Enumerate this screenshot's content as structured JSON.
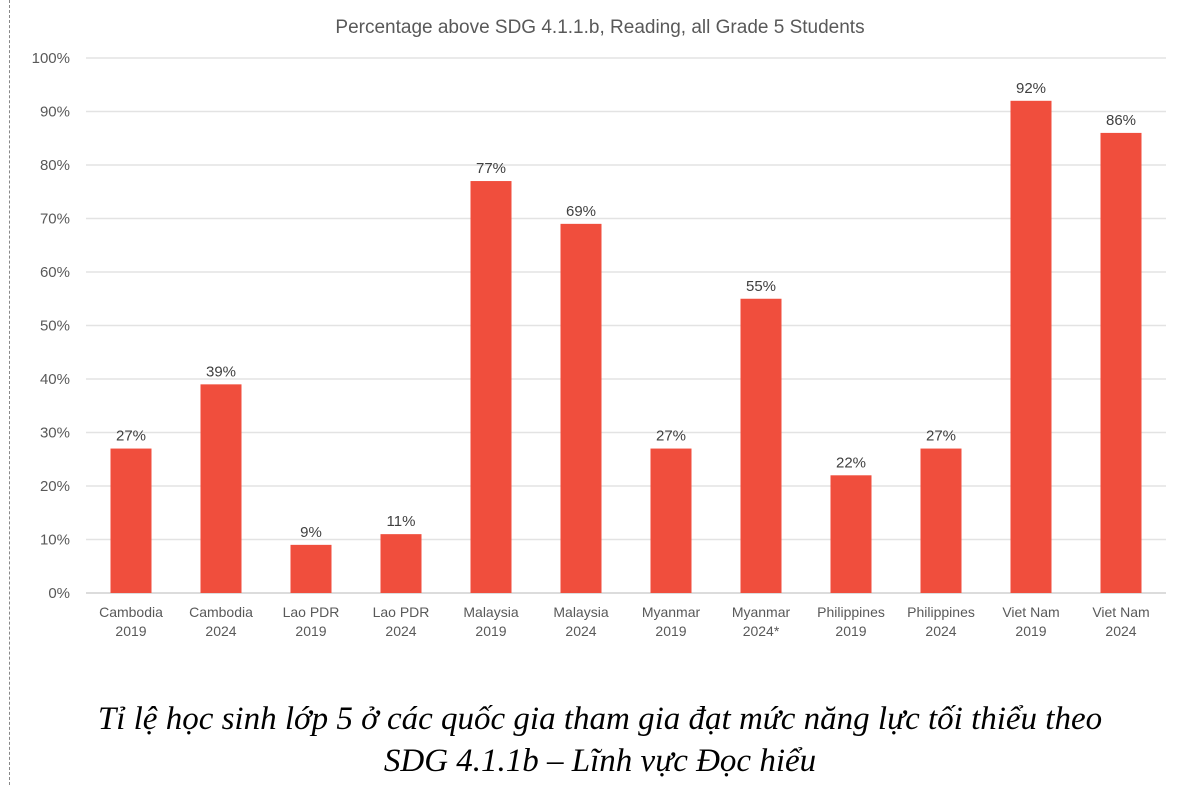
{
  "chart_data": {
    "type": "bar",
    "title": "Percentage above SDG 4.1.1.b, Reading, all Grade 5 Students",
    "categories": [
      [
        "Cambodia",
        "2019"
      ],
      [
        "Cambodia",
        "2024"
      ],
      [
        "Lao PDR",
        "2019"
      ],
      [
        "Lao PDR",
        "2024"
      ],
      [
        "Malaysia",
        "2019"
      ],
      [
        "Malaysia",
        "2024"
      ],
      [
        "Myanmar",
        "2019"
      ],
      [
        "Myanmar",
        "2024*"
      ],
      [
        "Philippines",
        "2019"
      ],
      [
        "Philippines",
        "2024"
      ],
      [
        "Viet Nam",
        "2019"
      ],
      [
        "Viet Nam",
        "2024"
      ]
    ],
    "values": [
      27,
      39,
      9,
      11,
      77,
      69,
      27,
      55,
      22,
      27,
      92,
      86
    ],
    "data_labels": [
      "27%",
      "39%",
      "9%",
      "11%",
      "77%",
      "69%",
      "27%",
      "55%",
      "22%",
      "27%",
      "92%",
      "86%"
    ],
    "y_ticks": [
      "0%",
      "10%",
      "20%",
      "30%",
      "40%",
      "50%",
      "60%",
      "70%",
      "80%",
      "90%",
      "100%"
    ],
    "ylim": [
      0,
      100
    ],
    "xlabel": "",
    "ylabel": "",
    "grid": true,
    "bar_color": "#f04e3d"
  },
  "caption": {
    "line1": "Tỉ lệ học sinh lớp 5 ở các quốc gia tham gia đạt mức năng lực tối thiểu theo",
    "line2": "SDG 4.1.1b – Lĩnh vực Đọc hiểu"
  }
}
